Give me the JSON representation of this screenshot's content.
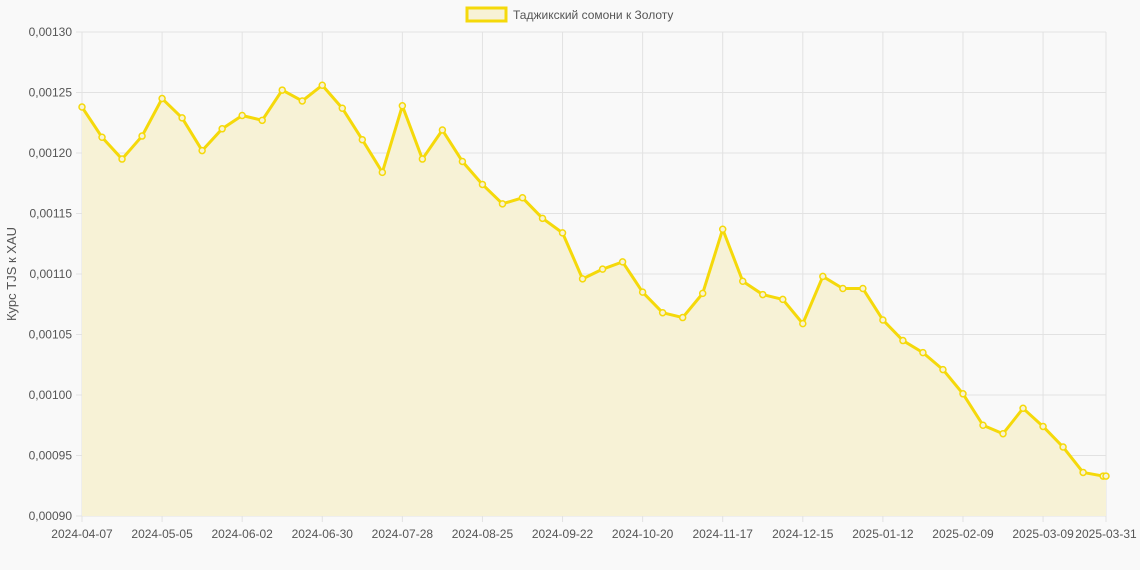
{
  "colors": {
    "background": "#f9f9f9",
    "line": "#f5d90a",
    "fill": "#f7f2d6",
    "grid": "#e2e2e2"
  },
  "chart_data": {
    "type": "area",
    "legend": {
      "label": "Таджикский сомони к Золоту",
      "position": "top-center"
    },
    "ylabel": "Курс TJS к XAU",
    "xlabel": "",
    "ylim": [
      0.0009,
      0.0013
    ],
    "yticks": [
      "0,00090",
      "0,00095",
      "0,00100",
      "0,00105",
      "0,00110",
      "0,00115",
      "0,00120",
      "0,00125",
      "0,00130"
    ],
    "ytick_values": [
      0.0009,
      0.00095,
      0.001,
      0.00105,
      0.0011,
      0.00115,
      0.0012,
      0.00125,
      0.0013
    ],
    "xtick_labels": [
      "2024-04-07",
      "2024-05-05",
      "2024-06-02",
      "2024-06-30",
      "2024-07-28",
      "2024-08-25",
      "2024-09-22",
      "2024-10-20",
      "2024-11-17",
      "2024-12-15",
      "2025-01-12",
      "2025-02-09",
      "2025-03-09",
      "2025-03-31"
    ],
    "grid": true,
    "series": [
      {
        "name": "Таджикский сомони к Золоту",
        "x": [
          "2024-04-07",
          "2024-04-14",
          "2024-04-21",
          "2024-04-28",
          "2024-05-05",
          "2024-05-12",
          "2024-05-19",
          "2024-05-26",
          "2024-06-02",
          "2024-06-09",
          "2024-06-16",
          "2024-06-23",
          "2024-06-30",
          "2024-07-07",
          "2024-07-14",
          "2024-07-21",
          "2024-07-28",
          "2024-08-04",
          "2024-08-11",
          "2024-08-18",
          "2024-08-25",
          "2024-09-01",
          "2024-09-08",
          "2024-09-15",
          "2024-09-22",
          "2024-09-29",
          "2024-10-06",
          "2024-10-13",
          "2024-10-20",
          "2024-10-27",
          "2024-11-03",
          "2024-11-10",
          "2024-11-17",
          "2024-11-24",
          "2024-12-01",
          "2024-12-08",
          "2024-12-15",
          "2024-12-22",
          "2024-12-29",
          "2025-01-05",
          "2025-01-12",
          "2025-01-19",
          "2025-01-26",
          "2025-02-02",
          "2025-02-09",
          "2025-02-16",
          "2025-02-23",
          "2025-03-02",
          "2025-03-09",
          "2025-03-16",
          "2025-03-23",
          "2025-03-30",
          "2025-03-31"
        ],
        "values": [
          0.001238,
          0.001213,
          0.001195,
          0.001214,
          0.001245,
          0.001229,
          0.001202,
          0.00122,
          0.001231,
          0.001227,
          0.001252,
          0.001243,
          0.001256,
          0.001237,
          0.001211,
          0.001184,
          0.001239,
          0.001195,
          0.001219,
          0.001193,
          0.001174,
          0.001158,
          0.001163,
          0.001146,
          0.001134,
          0.001096,
          0.001104,
          0.00111,
          0.001085,
          0.001068,
          0.001064,
          0.001084,
          0.001137,
          0.001094,
          0.001083,
          0.001079,
          0.001059,
          0.001098,
          0.001088,
          0.001088,
          0.001062,
          0.001045,
          0.001035,
          0.001021,
          0.001001,
          0.000975,
          0.000968,
          0.000989,
          0.000974,
          0.000957,
          0.000936,
          0.000933,
          0.000933
        ]
      }
    ]
  }
}
